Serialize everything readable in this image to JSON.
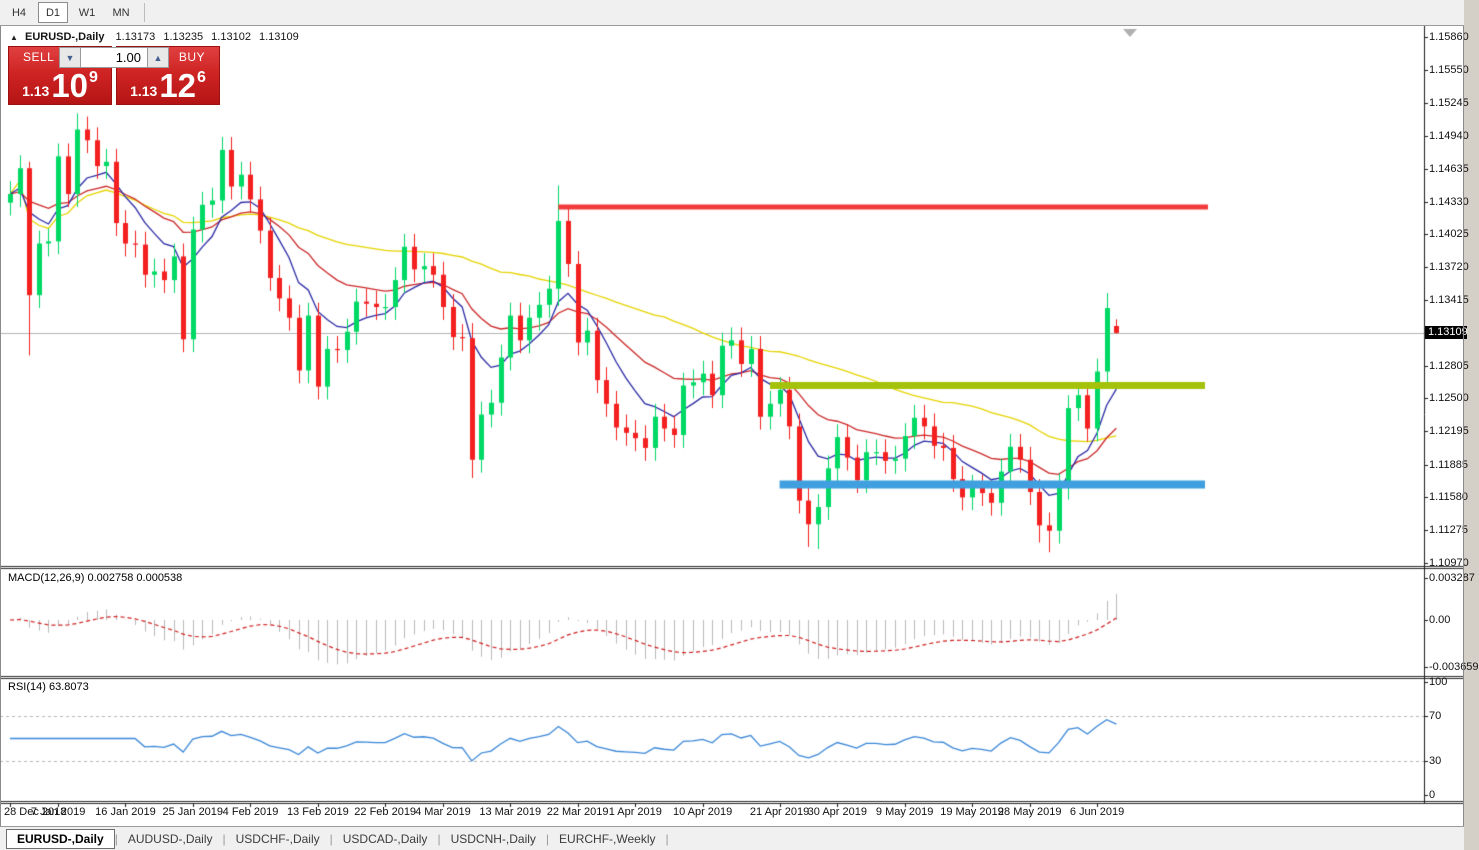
{
  "window": {
    "title_triangle": "▲",
    "title_symbol": "EURUSD-,Daily",
    "ohlc": {
      "open": "1.13173",
      "high": "1.13235",
      "low": "1.13102",
      "close": "1.13109"
    }
  },
  "toolbar": {
    "timeframes": [
      {
        "label": "H4",
        "active": false
      },
      {
        "label": "D1",
        "active": true
      },
      {
        "label": "W1",
        "active": false
      },
      {
        "label": "MN",
        "active": false
      }
    ]
  },
  "trade_panel": {
    "sell_label": "SELL",
    "buy_label": "BUY",
    "volume": "1.00",
    "sell_price": {
      "prefix": "1.13",
      "big": "10",
      "sup": "9"
    },
    "buy_price": {
      "prefix": "1.13",
      "big": "12",
      "sup": "6"
    }
  },
  "price_axis": {
    "ticks": [
      "1.15860",
      "1.15550",
      "1.15245",
      "1.14940",
      "1.14635",
      "1.14330",
      "1.14025",
      "1.13720",
      "1.13415",
      "1.12805",
      "1.12500",
      "1.12195",
      "1.11885",
      "1.11580",
      "1.11275",
      "1.10970"
    ],
    "current": "1.13109"
  },
  "macd": {
    "label": "MACD(12,26,9) 0.002758 0.000538",
    "value": "0.002758",
    "signal_value": "0.000538",
    "axis": [
      {
        "text": "0.003287",
        "v": 0.003287
      },
      {
        "text": "0.00",
        "v": 0
      },
      {
        "text": "-0.003659",
        "v": -0.003659
      }
    ],
    "colors": {
      "hist": "#b9b9b9",
      "signal": "#d02020"
    }
  },
  "rsi": {
    "label": "RSI(14) 63.8073",
    "value": "63.8073",
    "axis": [
      {
        "text": "100",
        "v": 100
      },
      {
        "text": "70",
        "v": 70
      },
      {
        "text": "30",
        "v": 30
      },
      {
        "text": "0",
        "v": 0
      }
    ],
    "levels": [
      70,
      30
    ],
    "color": "#3a87d8",
    "level_color": "#b5b5b5"
  },
  "time_axis": {
    "labels": [
      {
        "text": "28 Dec 2018",
        "bar": 0
      },
      {
        "text": "7 Jan 2019",
        "bar": 5
      },
      {
        "text": "16 Jan 2019",
        "bar": 12
      },
      {
        "text": "25 Jan 2019",
        "bar": 19
      },
      {
        "text": "4 Feb 2019",
        "bar": 25
      },
      {
        "text": "13 Feb 2019",
        "bar": 32
      },
      {
        "text": "22 Feb 2019",
        "bar": 39
      },
      {
        "text": "4 Mar 2019",
        "bar": 45
      },
      {
        "text": "13 Mar 2019",
        "bar": 52
      },
      {
        "text": "22 Mar 2019",
        "bar": 59
      },
      {
        "text": "1 Apr 2019",
        "bar": 65
      },
      {
        "text": "10 Apr 2019",
        "bar": 72
      },
      {
        "text": "21 Apr 2019",
        "bar": 80
      },
      {
        "text": "30 Apr 2019",
        "bar": 86
      },
      {
        "text": "9 May 2019",
        "bar": 93
      },
      {
        "text": "19 May 2019",
        "bar": 100
      },
      {
        "text": "28 May 2019",
        "bar": 106
      },
      {
        "text": "6 Jun 2019",
        "bar": 113
      }
    ]
  },
  "tabs": [
    {
      "label": "EURUSD-,Daily",
      "active": true
    },
    {
      "label": "AUDUSD-,Daily",
      "active": false
    },
    {
      "label": "USDCHF-,Daily",
      "active": false
    },
    {
      "label": "USDCAD-,Daily",
      "active": false
    },
    {
      "label": "USDCNH-,Daily",
      "active": false
    },
    {
      "label": "EURCHF-,Weekly",
      "active": false
    }
  ],
  "chart_data": {
    "type": "candlestick",
    "symbol": "EURUSD",
    "timeframe": "Daily",
    "ylim": [
      1.1097,
      1.1586
    ],
    "current_price": 1.13109,
    "colors": {
      "bull": "#00d964",
      "bear": "#f42020",
      "price_line": "#b4b4b4"
    },
    "overlays": [
      {
        "type": "ema",
        "period": 8,
        "color": "#2a2aa5"
      },
      {
        "type": "ema",
        "period": 21,
        "color": "#cc2929"
      },
      {
        "type": "sma",
        "period": 50,
        "color": "#e6d400"
      }
    ],
    "hlines": [
      {
        "price": 1.1428,
        "color": "#f23b3b",
        "from_bar": 57,
        "to_x": 1208,
        "width": 5
      },
      {
        "price": 1.1262,
        "color": "#a4c20c",
        "from_bar": 79,
        "to_x": 1205,
        "width": 7
      },
      {
        "price": 1.117,
        "color": "#3f9fdf",
        "from_bar": 80,
        "to_x": 1205,
        "width": 8
      }
    ],
    "open": [
      1.1432,
      1.144,
      1.1464,
      1.1346,
      1.1394,
      1.1396,
      1.1475,
      1.144,
      1.15,
      1.149,
      1.1466,
      1.147,
      1.1413,
      1.1394,
      1.1393,
      1.1365,
      1.1368,
      1.136,
      1.1382,
      1.1305,
      1.1407,
      1.143,
      1.1434,
      1.1481,
      1.1447,
      1.1458,
      1.1435,
      1.1406,
      1.1362,
      1.1343,
      1.1325,
      1.1276,
      1.1327,
      1.1261,
      1.1296,
      1.1295,
      1.1312,
      1.134,
      1.1338,
      1.1335,
      1.1335,
      1.136,
      1.1391,
      1.137,
      1.1373,
      1.1365,
      1.1335,
      1.1307,
      1.1306,
      1.1193,
      1.1235,
      1.1246,
      1.1288,
      1.1327,
      1.1304,
      1.1325,
      1.1337,
      1.1352,
      1.1415,
      1.1375,
      1.1302,
      1.1313,
      1.1267,
      1.1245,
      1.1223,
      1.1218,
      1.1213,
      1.1204,
      1.1233,
      1.1222,
      1.1216,
      1.1262,
      1.1265,
      1.1273,
      1.1253,
      1.1299,
      1.1304,
      1.1282,
      1.1296,
      1.1233,
      1.1245,
      1.1258,
      1.1224,
      1.1155,
      1.1133,
      1.1149,
      1.1185,
      1.1214,
      1.1195,
      1.1174,
      1.12,
      1.12,
      1.1192,
      1.1194,
      1.1215,
      1.1232,
      1.1224,
      1.1206,
      1.1204,
      1.1175,
      1.1158,
      1.1167,
      1.1162,
      1.1153,
      1.1182,
      1.1205,
      1.1193,
      1.1163,
      1.1132,
      1.1127,
      1.1168,
      1.1241,
      1.1253,
      1.1222,
      1.1275,
      1.13173
    ],
    "high": [
      1.1452,
      1.1476,
      1.147,
      1.1406,
      1.1408,
      1.1487,
      1.1487,
      1.1515,
      1.1512,
      1.1502,
      1.1482,
      1.1482,
      1.1425,
      1.1406,
      1.1405,
      1.138,
      1.138,
      1.1394,
      1.1394,
      1.1419,
      1.1442,
      1.1446,
      1.1493,
      1.1493,
      1.147,
      1.147,
      1.1447,
      1.1418,
      1.1374,
      1.1355,
      1.1337,
      1.1339,
      1.1339,
      1.1308,
      1.1308,
      1.1324,
      1.1352,
      1.1352,
      1.135,
      1.1347,
      1.1372,
      1.1403,
      1.1403,
      1.1385,
      1.1385,
      1.1377,
      1.1347,
      1.1319,
      1.132,
      1.1247,
      1.1258,
      1.13,
      1.1339,
      1.1339,
      1.1337,
      1.1349,
      1.1364,
      1.1448,
      1.1427,
      1.1387,
      1.1325,
      1.1325,
      1.1279,
      1.1257,
      1.1235,
      1.123,
      1.1225,
      1.1245,
      1.1245,
      1.1234,
      1.1274,
      1.1277,
      1.1285,
      1.1285,
      1.1311,
      1.1316,
      1.1316,
      1.1308,
      1.1308,
      1.1257,
      1.127,
      1.127,
      1.1236,
      1.1167,
      1.1161,
      1.1197,
      1.1226,
      1.1226,
      1.1207,
      1.1212,
      1.1212,
      1.1212,
      1.1206,
      1.1227,
      1.1244,
      1.1244,
      1.1236,
      1.1218,
      1.1216,
      1.1187,
      1.1179,
      1.1179,
      1.1174,
      1.1194,
      1.1217,
      1.1217,
      1.1205,
      1.1175,
      1.1144,
      1.118,
      1.1253,
      1.1265,
      1.1265,
      1.1287,
      1.1348,
      1.13235
    ],
    "low": [
      1.142,
      1.1428,
      1.129,
      1.1334,
      1.1382,
      1.1384,
      1.1428,
      1.1428,
      1.1478,
      1.1454,
      1.1454,
      1.1401,
      1.1382,
      1.1381,
      1.1353,
      1.1353,
      1.1348,
      1.1348,
      1.1293,
      1.1293,
      1.1395,
      1.1418,
      1.1422,
      1.1435,
      1.1435,
      1.1423,
      1.1394,
      1.135,
      1.1331,
      1.1313,
      1.1264,
      1.1264,
      1.1249,
      1.1249,
      1.1283,
      1.1283,
      1.13,
      1.1326,
      1.1323,
      1.1323,
      1.1323,
      1.1348,
      1.1358,
      1.1358,
      1.1353,
      1.1323,
      1.1295,
      1.1294,
      1.1176,
      1.1181,
      1.1223,
      1.1234,
      1.1276,
      1.1292,
      1.1292,
      1.1313,
      1.1325,
      1.1336,
      1.1363,
      1.129,
      1.129,
      1.1255,
      1.1233,
      1.1211,
      1.1206,
      1.1201,
      1.1192,
      1.1192,
      1.121,
      1.1204,
      1.1204,
      1.125,
      1.1253,
      1.1241,
      1.1241,
      1.1287,
      1.127,
      1.127,
      1.1221,
      1.1221,
      1.1233,
      1.1212,
      1.1143,
      1.1112,
      1.111,
      1.1137,
      1.1173,
      1.1183,
      1.1162,
      1.1162,
      1.1188,
      1.118,
      1.118,
      1.1182,
      1.1203,
      1.1212,
      1.1194,
      1.1192,
      1.1163,
      1.1146,
      1.1146,
      1.115,
      1.1141,
      1.1141,
      1.117,
      1.1181,
      1.1151,
      1.1116,
      1.1107,
      1.1115,
      1.1156,
      1.1229,
      1.121,
      1.121,
      1.1263,
      1.13102
    ],
    "close": [
      1.144,
      1.1464,
      1.1346,
      1.1394,
      1.1396,
      1.1475,
      1.144,
      1.15,
      1.149,
      1.1466,
      1.147,
      1.1413,
      1.1394,
      1.1393,
      1.1365,
      1.1368,
      1.136,
      1.1382,
      1.1305,
      1.1407,
      1.143,
      1.1434,
      1.1481,
      1.1447,
      1.1458,
      1.1435,
      1.1406,
      1.1362,
      1.1343,
      1.1325,
      1.1276,
      1.1327,
      1.1261,
      1.1296,
      1.1295,
      1.1312,
      1.134,
      1.1338,
      1.1335,
      1.1335,
      1.136,
      1.1391,
      1.137,
      1.1373,
      1.1365,
      1.1335,
      1.1307,
      1.1306,
      1.1193,
      1.1235,
      1.1246,
      1.1288,
      1.1327,
      1.1304,
      1.1325,
      1.1337,
      1.1352,
      1.1415,
      1.1375,
      1.1302,
      1.1313,
      1.1267,
      1.1245,
      1.1223,
      1.1218,
      1.1213,
      1.1204,
      1.1233,
      1.1222,
      1.1216,
      1.1262,
      1.1265,
      1.1273,
      1.1253,
      1.1299,
      1.1304,
      1.1282,
      1.1296,
      1.1233,
      1.1245,
      1.1258,
      1.1224,
      1.1155,
      1.1133,
      1.1149,
      1.1185,
      1.1214,
      1.1195,
      1.1174,
      1.12,
      1.12,
      1.1192,
      1.1194,
      1.1215,
      1.1232,
      1.1224,
      1.1206,
      1.1204,
      1.1175,
      1.1158,
      1.1167,
      1.1162,
      1.1153,
      1.1182,
      1.1205,
      1.1193,
      1.1163,
      1.1132,
      1.1127,
      1.1168,
      1.1241,
      1.1253,
      1.1222,
      1.1275,
      1.1334,
      1.13109
    ]
  }
}
